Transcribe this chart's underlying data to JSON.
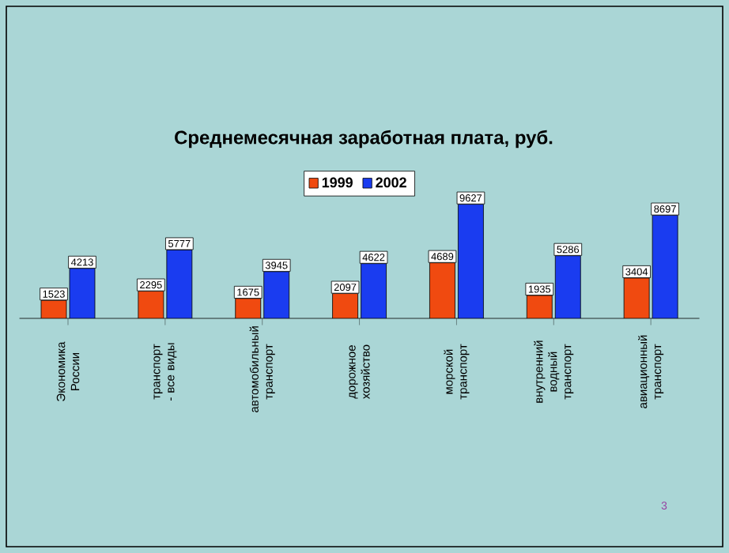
{
  "chart_data": {
    "type": "bar",
    "title": "Среднемесячная заработная плата, руб.",
    "categories": [
      "Экономика России",
      "транспорт - все виды",
      "автомобильный транспорт",
      "дорожное хозяйство",
      "морской транспорт",
      "внутренний водный транспорт",
      "авиационный транспорт"
    ],
    "series": [
      {
        "name": "1999",
        "color": "#f04a10",
        "values": [
          1523,
          2295,
          1675,
          2097,
          4689,
          1935,
          3404
        ]
      },
      {
        "name": "2002",
        "color": "#1a3cf0",
        "values": [
          4213,
          5777,
          3945,
          4622,
          9627,
          5286,
          8697
        ]
      }
    ],
    "ylim": [
      0,
      10000
    ],
    "legend": "top",
    "data_labels": true,
    "annotations": [
      "3"
    ]
  }
}
